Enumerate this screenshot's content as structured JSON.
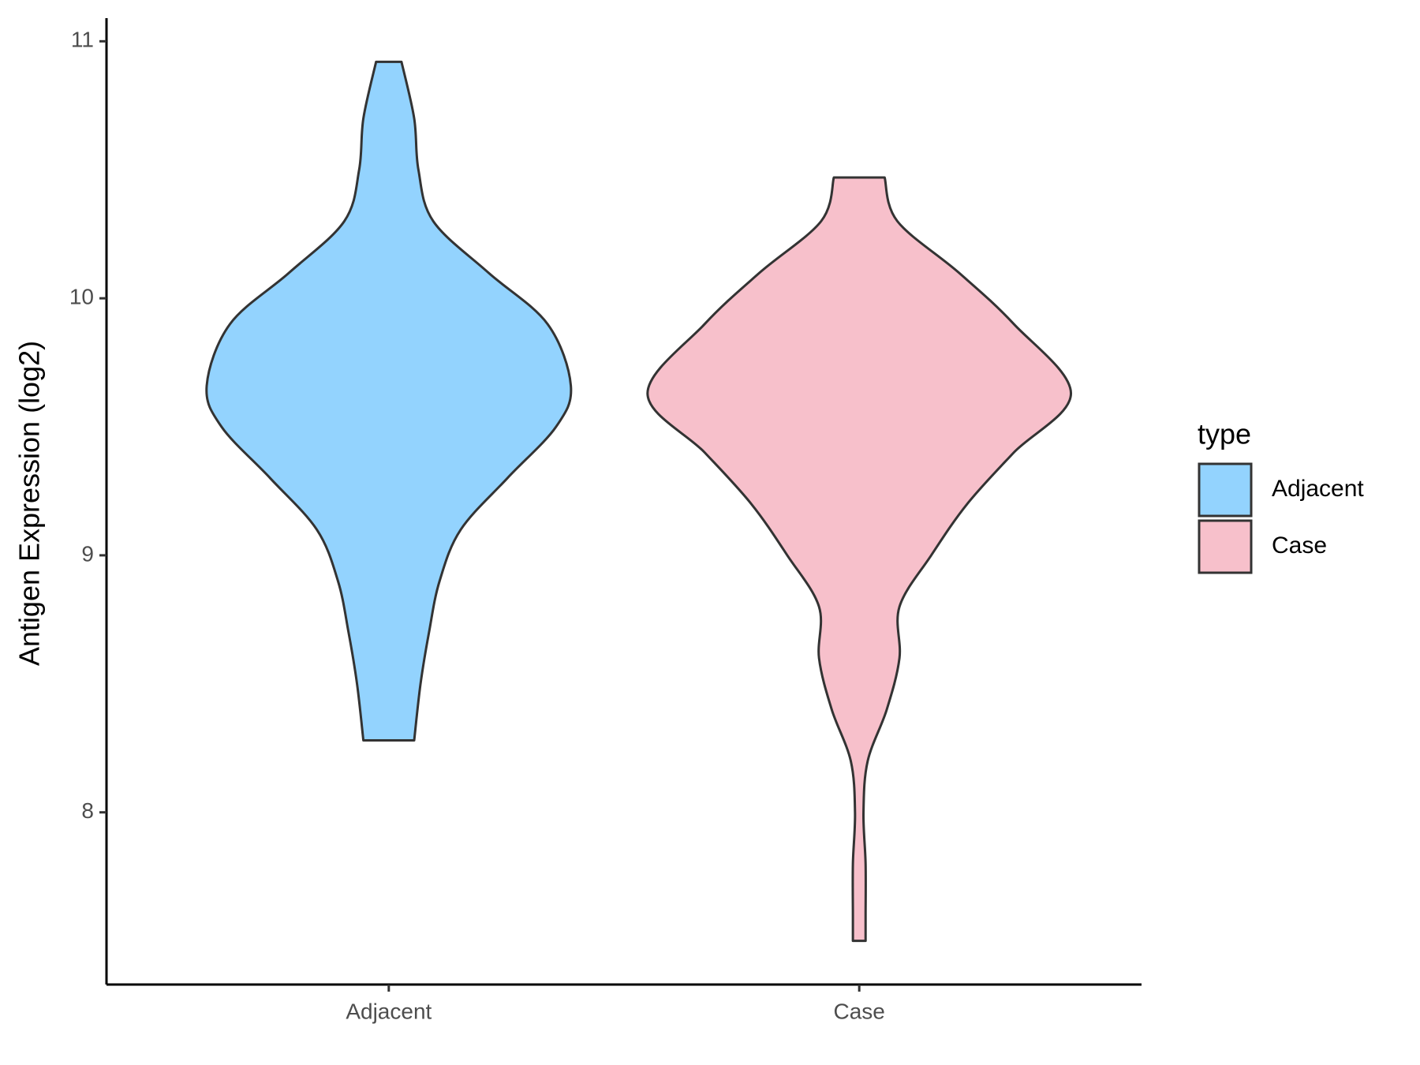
{
  "chart_data": {
    "type": "violin",
    "y_label": "Antigen Expression (log2)",
    "categories": [
      "Adjacent",
      "Case"
    ],
    "legend_title": "type",
    "series": [
      {
        "name": "Adjacent",
        "color": "#93d3fe",
        "y": [
          10.92,
          10.7,
          10.5,
          10.3,
          10.1,
          9.9,
          9.66,
          9.5,
          9.3,
          9.1,
          8.9,
          8.7,
          8.5,
          8.28
        ],
        "density": [
          0.06,
          0.12,
          0.14,
          0.21,
          0.47,
          0.75,
          0.86,
          0.79,
          0.56,
          0.34,
          0.24,
          0.19,
          0.15,
          0.12
        ]
      },
      {
        "name": "Case",
        "color": "#f7c0cb",
        "y": [
          10.47,
          10.3,
          10.1,
          9.9,
          9.63,
          9.4,
          9.2,
          9.0,
          8.8,
          8.6,
          8.4,
          8.2,
          8.0,
          7.8,
          7.6,
          7.5
        ],
        "density": [
          0.12,
          0.18,
          0.47,
          0.73,
          1.0,
          0.73,
          0.51,
          0.34,
          0.19,
          0.19,
          0.13,
          0.04,
          0.02,
          0.03,
          0.03,
          0.03
        ]
      }
    ],
    "ylim": [
      7.33,
      11.09
    ],
    "yticks": [
      8,
      9,
      10,
      11
    ],
    "legend": "right"
  }
}
